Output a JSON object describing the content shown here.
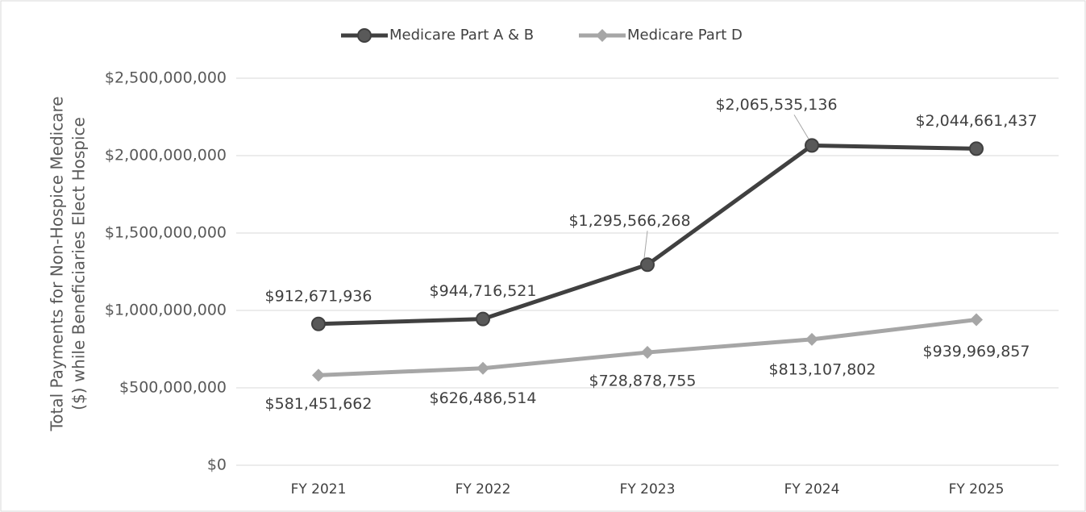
{
  "chart_data": {
    "type": "line",
    "ylabel": [
      "Total Payments for Non-Hospice Medicare",
      "($) while Beneficiaries Elect Hospice"
    ],
    "categories": [
      "FY 2021",
      "FY 2022",
      "FY 2023",
      "FY 2024",
      "FY 2025"
    ],
    "series": [
      {
        "name": "Medicare Part A & B",
        "color": "#404040",
        "marker": "circle",
        "values": [
          912671936,
          944716521,
          1295566268,
          2065535136,
          2044661437
        ],
        "value_labels": [
          "$912,671,936",
          "$944,716,521",
          "$1,295,566,268",
          "$2,065,535,136",
          "$2,044,661,437"
        ]
      },
      {
        "name": "Medicare Part D",
        "color": "#a6a6a6",
        "marker": "diamond",
        "values": [
          581451662,
          626486514,
          728878755,
          813107802,
          939969857
        ],
        "value_labels": [
          "$581,451,662",
          "$626,486,514",
          "$728,878,755",
          "$813,107,802",
          "$939,969,857"
        ]
      }
    ],
    "ylim": [
      0,
      2500000000
    ],
    "yticks": [
      {
        "value": 0,
        "label": "$0"
      },
      {
        "value": 500000000,
        "label": "$500,000,000"
      },
      {
        "value": 1000000000,
        "label": "$1,000,000,000"
      },
      {
        "value": 1500000000,
        "label": "$1,500,000,000"
      },
      {
        "value": 2000000000,
        "label": "$2,000,000,000"
      },
      {
        "value": 2500000000,
        "label": "$2,500,000,000"
      }
    ],
    "grid": true,
    "legend": "top"
  }
}
